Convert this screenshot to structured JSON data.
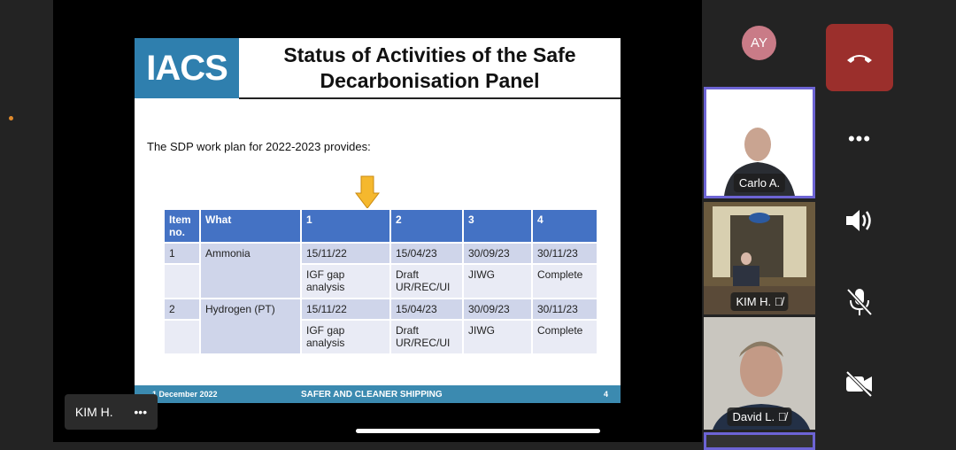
{
  "slide": {
    "logo": "IACS",
    "title": "Status of Activities of the Safe Decarbonisation Panel",
    "intro": "The SDP work plan for 2022-2023 provides:",
    "table": {
      "headers": [
        "Item no.",
        "What",
        "1",
        "2",
        "3",
        "4"
      ],
      "rows": [
        {
          "item": "1",
          "what": "Ammonia",
          "dates": [
            "15/11/22",
            "15/04/23",
            "30/09/23",
            "30/11/23"
          ],
          "tasks": [
            "IGF gap analysis",
            "Draft UR/REC/UI",
            "JIWG",
            "Complete"
          ]
        },
        {
          "item": "2",
          "what": "Hydrogen (PT)",
          "dates": [
            "15/11/22",
            "15/04/23",
            "30/09/23",
            "30/11/23"
          ],
          "tasks": [
            "IGF gap analysis",
            "Draft UR/REC/UI",
            "JIWG",
            "Complete"
          ]
        }
      ]
    },
    "footer": {
      "date": "1 December 2022",
      "tagline": "SAFER AND CLEANER SHIPPING",
      "page": "4"
    }
  },
  "participants": [
    {
      "initials": "AY"
    },
    {
      "name": "Carlo A.",
      "muted": false,
      "active": true
    },
    {
      "name": "KIM H.",
      "muted": true
    },
    {
      "name": "David L.",
      "muted": true
    }
  ],
  "self_view": {
    "name": "KIM H.",
    "more": "•••"
  },
  "controls": {
    "hangup": "phone-hangup-icon",
    "more": "more-icon",
    "speaker": "speaker-icon",
    "mic": "mic-off-icon",
    "camera": "camera-off-icon",
    "more_label": "•••"
  },
  "colors": {
    "hangup": "#9b2f2c",
    "active_border": "#6d64d4",
    "table_header": "#4472c4",
    "logo": "#2f7fae"
  }
}
